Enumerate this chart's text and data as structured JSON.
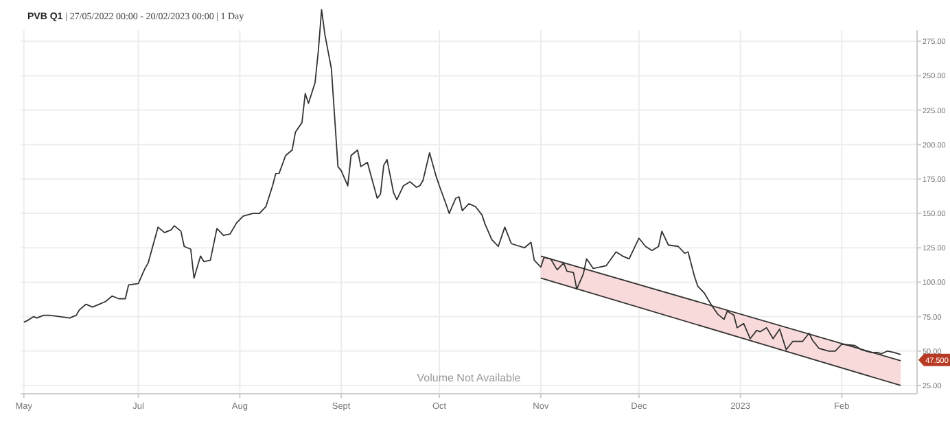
{
  "chart_data": {
    "type": "line",
    "title": "PVB Q1",
    "subtitle": "| 27/05/2022 00:00 - 20/02/2023 00:00 | 1 Day",
    "xlim": [
      "2022-05-26",
      "2023-02-24"
    ],
    "xticks": [
      {
        "value": "2022-05-27",
        "label": "May"
      },
      {
        "value": "2022-07-01",
        "label": "Jul"
      },
      {
        "value": "2022-08-01",
        "label": "Aug"
      },
      {
        "value": "2022-09-01",
        "label": "Sept"
      },
      {
        "value": "2022-10-01",
        "label": "Oct"
      },
      {
        "value": "2022-11-01",
        "label": "Nov"
      },
      {
        "value": "2022-12-01",
        "label": "Dec"
      },
      {
        "value": "2023-01-01",
        "label": "2023"
      },
      {
        "value": "2023-02-01",
        "label": "Feb"
      }
    ],
    "ylim": [
      19,
      305
    ],
    "yticks": [
      {
        "value": 25,
        "label": "25.00"
      },
      {
        "value": 50,
        "label": "50.00"
      },
      {
        "value": 75,
        "label": "75.00"
      },
      {
        "value": 100,
        "label": "100.00"
      },
      {
        "value": 125,
        "label": "125.00"
      },
      {
        "value": 150,
        "label": "150.00"
      },
      {
        "value": 175,
        "label": "175.00"
      },
      {
        "value": 200,
        "label": "200.00"
      },
      {
        "value": 225,
        "label": "225.00"
      },
      {
        "value": 250,
        "label": "250.00"
      },
      {
        "value": 275,
        "label": "275.00"
      }
    ],
    "grid": true,
    "marker": "none",
    "line_style": "solid",
    "series": [
      {
        "type": "line",
        "color": "#333333",
        "x": [
          "2022-11-01",
          "2023-02-19"
        ],
        "values": [
          119,
          43
        ]
      },
      {
        "type": "line",
        "color": "#333333",
        "x": [
          "2022-11-01",
          "2023-02-19"
        ],
        "values": [
          103,
          25
        ]
      },
      {
        "color": "#333333",
        "x": [
          "2022-05-27",
          "2022-05-28",
          "2022-05-30",
          "2022-05-31",
          "2022-06-02",
          "2022-06-04",
          "2022-06-07",
          "2022-06-10",
          "2022-06-12",
          "2022-06-13",
          "2022-06-15",
          "2022-06-17",
          "2022-06-19",
          "2022-06-21",
          "2022-06-23",
          "2022-06-25",
          "2022-06-27",
          "2022-06-28",
          "2022-07-01",
          "2022-07-03",
          "2022-07-04",
          "2022-07-07",
          "2022-07-09",
          "2022-07-11",
          "2022-07-12",
          "2022-07-14",
          "2022-07-15",
          "2022-07-17",
          "2022-07-18",
          "2022-07-20",
          "2022-07-21",
          "2022-07-23",
          "2022-07-25",
          "2022-07-27",
          "2022-07-29",
          "2022-07-31",
          "2022-08-02",
          "2022-08-05",
          "2022-08-07",
          "2022-08-09",
          "2022-08-11",
          "2022-08-12",
          "2022-08-13",
          "2022-08-15",
          "2022-08-17",
          "2022-08-18",
          "2022-08-20",
          "2022-08-21",
          "2022-08-22",
          "2022-08-24",
          "2022-08-25",
          "2022-08-26",
          "2022-08-27",
          "2022-08-29",
          "2022-08-31",
          "2022-09-01",
          "2022-09-03",
          "2022-09-04",
          "2022-09-06",
          "2022-09-07",
          "2022-09-09",
          "2022-09-12",
          "2022-09-13",
          "2022-09-14",
          "2022-09-15",
          "2022-09-17",
          "2022-09-18",
          "2022-09-20",
          "2022-09-22",
          "2022-09-24",
          "2022-09-25",
          "2022-09-26",
          "2022-09-28",
          "2022-09-30",
          "2022-10-01",
          "2022-10-03",
          "2022-10-04",
          "2022-10-06",
          "2022-10-07",
          "2022-10-08",
          "2022-10-10",
          "2022-10-12",
          "2022-10-14",
          "2022-10-15",
          "2022-10-17",
          "2022-10-19",
          "2022-10-21",
          "2022-10-23",
          "2022-10-27",
          "2022-10-29",
          "2022-10-30",
          "2022-11-01",
          "2022-11-02",
          "2022-11-04",
          "2022-11-06",
          "2022-11-08",
          "2022-11-09",
          "2022-11-11",
          "2022-11-12",
          "2022-11-14",
          "2022-11-15",
          "2022-11-17",
          "2022-11-21",
          "2022-11-24",
          "2022-11-26",
          "2022-11-28",
          "2022-12-01",
          "2022-12-03",
          "2022-12-05",
          "2022-12-07",
          "2022-12-08",
          "2022-12-10",
          "2022-12-13",
          "2022-12-15",
          "2022-12-16",
          "2022-12-18",
          "2022-12-19",
          "2022-12-21",
          "2022-12-23",
          "2022-12-25",
          "2022-12-27",
          "2022-12-28",
          "2022-12-30",
          "2022-12-31",
          "2023-01-02",
          "2023-01-04",
          "2023-01-06",
          "2023-01-07",
          "2023-01-09",
          "2023-01-11",
          "2023-01-13",
          "2023-01-15",
          "2023-01-17",
          "2023-01-20",
          "2023-01-22",
          "2023-01-23",
          "2023-01-25",
          "2023-01-28",
          "2023-01-30",
          "2023-02-01",
          "2023-02-05",
          "2023-02-07",
          "2023-02-10",
          "2023-02-12",
          "2023-02-13",
          "2023-02-15",
          "2023-02-17",
          "2023-02-19"
        ],
        "values": [
          71,
          72,
          75,
          74,
          76,
          76,
          75,
          74,
          76,
          80,
          84,
          82,
          84,
          86,
          90,
          88,
          88,
          98,
          99,
          110,
          114,
          140,
          136,
          138,
          141,
          137,
          126,
          124,
          103,
          119,
          115,
          116,
          139,
          134,
          135,
          143,
          148,
          150,
          150,
          155,
          170,
          179,
          179,
          192,
          196,
          209,
          216,
          237,
          230,
          245,
          268,
          298,
          280,
          255,
          184,
          181,
          170,
          192,
          196,
          184,
          187,
          161,
          164,
          185,
          189,
          165,
          160,
          170,
          173,
          169,
          170,
          174,
          194,
          177,
          170,
          157,
          150,
          161,
          162,
          152,
          157,
          155,
          149,
          142,
          131,
          126,
          140,
          128,
          125,
          129,
          116,
          111,
          118,
          117,
          109,
          114,
          108,
          107,
          95,
          106,
          117,
          110,
          112,
          122,
          119,
          117,
          132,
          126,
          123,
          126,
          137,
          127,
          126,
          121,
          122,
          104,
          97,
          92,
          84,
          77,
          73,
          79,
          76,
          67,
          70,
          59,
          65,
          64,
          67,
          59,
          66,
          51,
          57,
          57,
          63,
          58,
          52,
          50,
          50,
          55,
          54,
          51,
          49,
          49,
          48,
          50,
          49,
          47.5
        ]
      }
    ],
    "annotations": [
      "Volume Not Available",
      "47.500"
    ]
  }
}
